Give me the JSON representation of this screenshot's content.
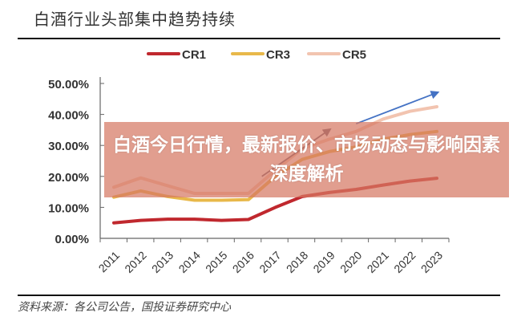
{
  "banner": {
    "headline": "白酒今日行情，最新报价、市场动态与影响因素深度解析"
  },
  "source": "资料来源：各公司公告，国投证券研究中心",
  "chart_data": {
    "type": "line",
    "title": "白酒行业头部集中趋势持续",
    "categories": [
      "2011",
      "2012",
      "2013",
      "2014",
      "2015",
      "2016",
      "2017",
      "2018",
      "2019",
      "2020",
      "2021",
      "2022",
      "2023"
    ],
    "series": [
      {
        "name": "CR1",
        "color": "#c0282e",
        "values": [
          5.0,
          5.8,
          6.2,
          6.2,
          5.8,
          6.1,
          10.0,
          13.5,
          14.8,
          15.8,
          17.2,
          18.5,
          19.4
        ]
      },
      {
        "name": "CR3",
        "color": "#e8b84a",
        "values": [
          13.3,
          15.3,
          13.5,
          12.3,
          12.3,
          12.5,
          20.0,
          25.5,
          28.0,
          29.5,
          32.0,
          33.5,
          34.5
        ]
      },
      {
        "name": "CR5",
        "color": "#f2c4b0",
        "values": [
          16.5,
          19.5,
          17.0,
          14.5,
          14.5,
          14.5,
          22.0,
          29.0,
          32.0,
          34.5,
          38.5,
          41.0,
          42.5
        ]
      }
    ],
    "ylim": [
      0,
      50
    ],
    "yticks": [
      "0.00%",
      "10.00%",
      "20.00%",
      "30.00%",
      "40.00%",
      "50.00%"
    ],
    "legend": "top",
    "grid": false,
    "arrows": [
      {
        "from": [
          "2016.5",
          20
        ],
        "to": [
          "2019",
          35
        ],
        "color": "#6a5a70"
      },
      {
        "from": [
          "2020",
          37
        ],
        "to": [
          "2023",
          47
        ],
        "color": "#4472c4"
      }
    ]
  }
}
